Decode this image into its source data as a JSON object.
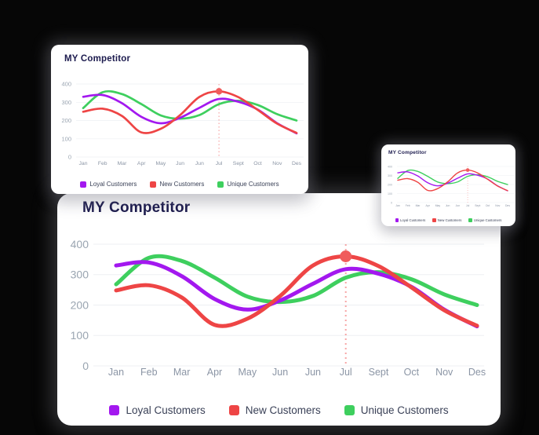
{
  "cards": {
    "large": {
      "title": "MY Competitor"
    },
    "medium": {
      "title": "MY Competitor"
    },
    "small": {
      "title": "MY Competitor"
    }
  },
  "chart_data": {
    "type": "line",
    "title": "MY Competitor",
    "categories": [
      "Jan",
      "Feb",
      "Mar",
      "Apr",
      "May",
      "Jun",
      "Jun",
      "Jul",
      "Sept",
      "Oct",
      "Nov",
      "Des"
    ],
    "series": [
      {
        "name": "Loyal Customers",
        "color": "#a318ef",
        "values": [
          330,
          340,
          295,
          220,
          185,
          215,
          270,
          318,
          303,
          260,
          185,
          130
        ]
      },
      {
        "name": "New Customers",
        "color": "#ee4545",
        "values": [
          248,
          265,
          225,
          135,
          155,
          230,
          330,
          360,
          328,
          258,
          183,
          132
        ]
      },
      {
        "name": "Unique Customers",
        "color": "#3ecf5e",
        "values": [
          268,
          355,
          345,
          290,
          228,
          210,
          230,
          290,
          308,
          285,
          235,
          200
        ]
      }
    ],
    "ylim": [
      0,
      400
    ],
    "y_ticks": [
      0,
      100,
      200,
      300,
      400
    ],
    "grid": "horizontal",
    "legend_position": "bottom",
    "marker": {
      "series": "New Customers",
      "category": "Jul",
      "index": 7,
      "value": 360,
      "color": "#f05c5c",
      "line_style": "dotted"
    }
  },
  "colors": {
    "background": "#060606",
    "card": "#ffffff",
    "title": "#1c1b4e",
    "axis_y_labels": "#9aa5b1",
    "axis_x_labels": "#8b95a5",
    "gridline": "#edeff3",
    "legend_text": "#3a4157"
  }
}
